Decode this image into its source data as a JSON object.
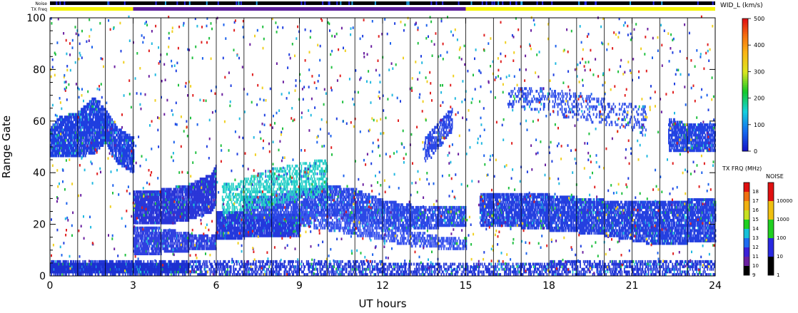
{
  "chart_data": [
    {
      "type": "heatmap",
      "title": "",
      "xlabel": "UT hours",
      "ylabel": "Range Gate",
      "xlim": [
        0,
        24
      ],
      "ylim": [
        0,
        100
      ],
      "xticks": [
        "0",
        "3",
        "6",
        "9",
        "12",
        "15",
        "18",
        "21",
        "24"
      ],
      "yticks": [
        "0",
        "20",
        "40",
        "60",
        "80",
        "100"
      ],
      "scan_hours_every": 1,
      "colorbar": {
        "label": "WID_L (km/s)",
        "range": [
          0,
          500
        ],
        "ticks": [
          "0",
          "100",
          "200",
          "300",
          "400",
          "500"
        ]
      },
      "bands": [
        {
          "name": "backscatter 1",
          "t": [
            0,
            0.3,
            1,
            1.6,
            2,
            2.4,
            3
          ],
          "lo": [
            46,
            46,
            46,
            48,
            52,
            44,
            40
          ],
          "hi": [
            56,
            60,
            62,
            68,
            63,
            56,
            52
          ],
          "density": 0.85,
          "color": "#1f3fe0"
        },
        {
          "name": "backscatter 2",
          "t": [
            3,
            4,
            5,
            5.8,
            6
          ],
          "lo": [
            20,
            20,
            22,
            25,
            28
          ],
          "hi": [
            32,
            32,
            34,
            38,
            42
          ],
          "density": 0.9,
          "color": "#2a36d8"
        },
        {
          "name": "backscatter 3",
          "t": [
            3,
            4,
            5,
            6
          ],
          "lo": [
            8,
            9,
            10,
            11
          ],
          "hi": [
            18,
            17,
            15,
            14
          ],
          "density": 0.8,
          "color": "#3040e0"
        },
        {
          "name": "backscatter 4",
          "t": [
            6,
            7,
            8,
            9
          ],
          "lo": [
            14,
            15,
            15,
            16
          ],
          "hi": [
            24,
            23,
            23,
            22
          ],
          "density": 0.9,
          "color": "#2438dc"
        },
        {
          "name": "backscatter 5",
          "t": [
            7,
            8,
            9,
            10,
            11,
            12,
            13,
            14,
            15
          ],
          "lo": [
            22,
            22,
            21,
            24,
            22,
            20,
            18,
            19,
            20
          ],
          "hi": [
            30,
            30,
            32,
            34,
            32,
            28,
            26,
            25,
            26
          ],
          "density": 0.75,
          "color": "#2c48e6"
        },
        {
          "name": "backscatter 6",
          "t": [
            9,
            10,
            11,
            12,
            13,
            14,
            15
          ],
          "lo": [
            20,
            18,
            16,
            14,
            12,
            11,
            10
          ],
          "hi": [
            24,
            22,
            20,
            18,
            16,
            14,
            13
          ],
          "density": 0.55,
          "color": "#3a55ee"
        },
        {
          "name": "backscatter 7",
          "t": [
            15.5,
            17,
            18,
            19,
            20,
            21,
            22,
            23,
            24
          ],
          "lo": [
            20,
            19,
            18,
            17,
            16,
            14,
            12,
            13,
            14
          ],
          "hi": [
            30,
            31,
            30,
            29,
            28,
            28,
            27,
            28,
            29
          ],
          "density": 0.8,
          "color": "#2540e0"
        },
        {
          "name": "backscatter 8",
          "t": [
            22.3,
            22.8,
            23.2,
            24
          ],
          "lo": [
            48,
            48,
            48,
            48
          ],
          "hi": [
            60,
            58,
            58,
            58
          ],
          "density": 0.8,
          "color": "#2443e2"
        },
        {
          "name": "backscatter 9",
          "t": [
            0,
            3.5,
            6,
            12,
            18,
            24
          ],
          "lo": [
            0,
            0,
            0,
            0,
            0,
            0
          ],
          "hi": [
            5,
            5,
            5,
            4,
            4,
            5
          ],
          "density": 0.5,
          "color": "#2438d8"
        },
        {
          "name": "backscatter 10",
          "t": [
            0,
            5
          ],
          "lo": [
            1,
            1
          ],
          "hi": [
            4,
            4
          ],
          "density": 1.0,
          "color": "#1c30d0"
        },
        {
          "name": "backscatter 11",
          "t": [
            6.2,
            7,
            8,
            9,
            10
          ],
          "lo": [
            24,
            26,
            28,
            30,
            32
          ],
          "hi": [
            34,
            36,
            40,
            42,
            44
          ],
          "density": 0.45,
          "color": "#28d0c8"
        },
        {
          "name": "backscatter 12",
          "t": [
            13.5,
            14,
            14.5
          ],
          "lo": [
            44,
            50,
            56
          ],
          "hi": [
            52,
            58,
            64
          ],
          "density": 0.6,
          "color": "#2c48e6"
        },
        {
          "name": "backscatter 13",
          "t": [
            16.5,
            17.5,
            18.5,
            19.5,
            20.5,
            21.5
          ],
          "lo": [
            66,
            64,
            62,
            60,
            58,
            54
          ],
          "hi": [
            72,
            72,
            70,
            68,
            66,
            64
          ],
          "density": 0.25,
          "color": "#3050ea"
        }
      ],
      "scatter_density": 0.07
    },
    {
      "type": "heatmap",
      "title": "",
      "colorbar_freq": {
        "label": "TX FRQ (MHz)",
        "ticks": [
          "9",
          "10",
          "11",
          "12",
          "13",
          "14",
          "15",
          "16",
          "17",
          "18"
        ],
        "colors": [
          "#000000",
          "#6a1fa0",
          "#3b20d8",
          "#1e6cf0",
          "#16c0d8",
          "#1fd020",
          "#c8e020",
          "#f0b010",
          "#f07010",
          "#e01010"
        ]
      },
      "colorbar_noise": {
        "label": "NOISE",
        "ticks": [
          "1",
          "10",
          "100",
          "1000",
          "10000"
        ],
        "colors": [
          "#000000",
          "#2828e0",
          "#20d020",
          "#f0c010",
          "#e01010"
        ]
      }
    }
  ],
  "header": {
    "noise_label": "Noise",
    "freq_label": "TX Freq",
    "freq_bar": [
      {
        "from": 0,
        "to": 3,
        "color": "#f4f400"
      },
      {
        "from": 3,
        "to": 15,
        "color": "#5b1d9a"
      },
      {
        "from": 15,
        "to": 24,
        "color": "#f4f400"
      }
    ]
  }
}
